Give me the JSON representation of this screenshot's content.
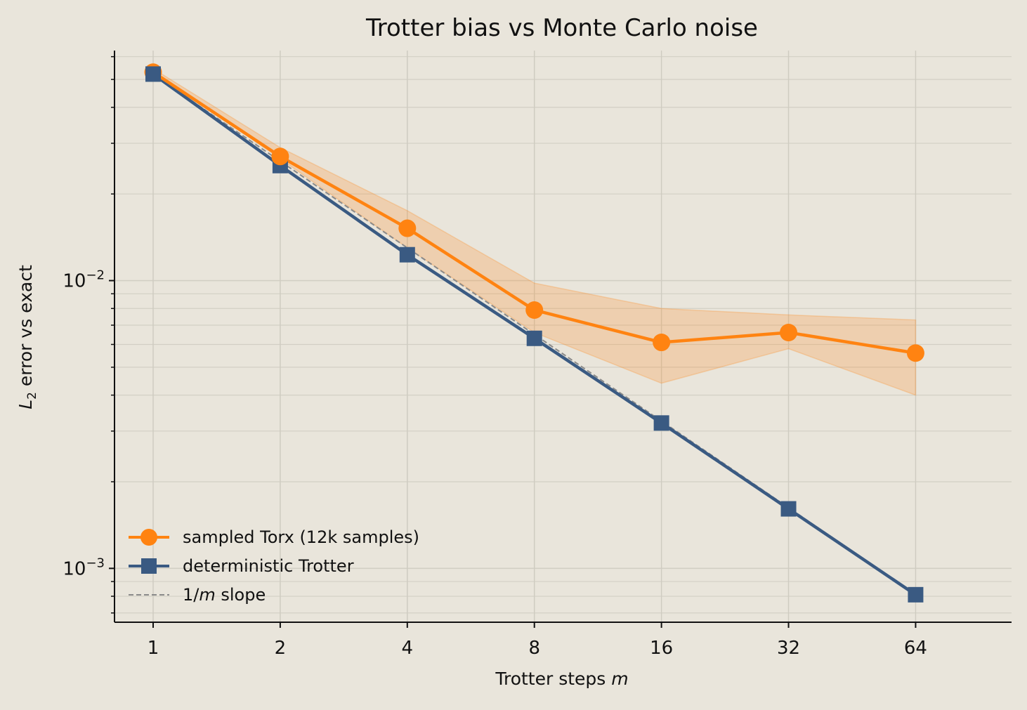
{
  "chart_data": {
    "type": "line",
    "title": "Trotter bias vs Monte Carlo noise",
    "xlabel": {
      "main": "Trotter steps ",
      "var": "m"
    },
    "ylabel": {
      "var": "L",
      "sub": "2",
      "rest": " error vs exact"
    },
    "xscale": "log2",
    "yscale": "log10",
    "x": [
      1,
      2,
      4,
      8,
      16,
      32,
      64
    ],
    "xticks": [
      "1",
      "2",
      "4",
      "8",
      "16",
      "32",
      "64"
    ],
    "yticks": [
      {
        "value": 0.01,
        "base": "10",
        "exp": "−2"
      },
      {
        "value": 0.001,
        "base": "10",
        "exp": "−3"
      }
    ],
    "xlim": [
      0.81,
      108
    ],
    "ylim": [
      0.00065,
      0.063
    ],
    "grid": true,
    "legend_position": "lower-left",
    "series": [
      {
        "name": "sampled Torx (12k samples)",
        "color": "#ff8311",
        "marker": "circle",
        "values": [
          0.053,
          0.027,
          0.0152,
          0.0079,
          0.0061,
          0.0066,
          0.0056
        ],
        "band_low": [
          0.0535,
          0.0265,
          0.013,
          0.0066,
          0.0044,
          0.0058,
          0.004
        ],
        "band_high": [
          0.0545,
          0.029,
          0.0175,
          0.0098,
          0.008,
          0.0076,
          0.0073
        ]
      },
      {
        "name": "deterministic Trotter",
        "color": "#3a5a82",
        "marker": "square",
        "values": [
          0.0522,
          0.0251,
          0.0123,
          0.0063,
          0.0032,
          0.00161,
          0.00081
        ]
      },
      {
        "name_var": "1/",
        "name_italic": "m",
        "name_rest": " slope",
        "color": "#8a8a8a",
        "style": "dashed",
        "values": [
          0.052,
          0.026,
          0.013,
          0.0065,
          0.00325,
          0.001625,
          0.0008125
        ]
      }
    ]
  }
}
